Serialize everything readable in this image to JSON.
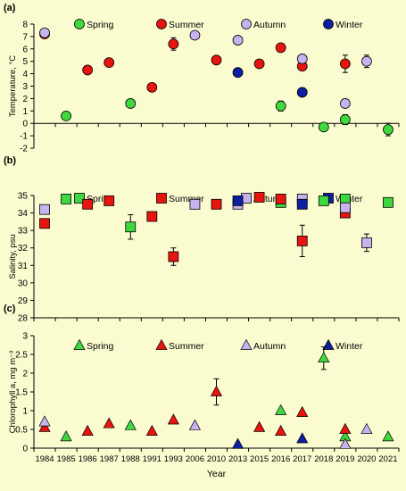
{
  "figure": {
    "background": "#fbfbd0"
  },
  "colors": {
    "Spring": "#3fd83f",
    "Summer": "#e8140e",
    "Autumn": "#c7b3f0",
    "Winter": "#0d1fa0"
  },
  "chart_data": [
    {
      "panel_label": "(a)",
      "type": "scatter",
      "marker": "circle",
      "ylabel": "Temperature, °C",
      "ylim": [
        -2,
        8
      ],
      "yticks": [
        -2,
        -1,
        0,
        1,
        2,
        3,
        4,
        5,
        6,
        7,
        8
      ],
      "legend": [
        "Spring",
        "Summer",
        "Autumn",
        "Winter"
      ],
      "series": [
        {
          "name": "Spring",
          "points": [
            {
              "year": "1985",
              "y": 0.6
            },
            {
              "year": "1988",
              "y": 1.6
            },
            {
              "year": "2016",
              "y": 1.4,
              "err": 0.4
            },
            {
              "year": "2018",
              "y": -0.3
            },
            {
              "year": "2019",
              "y": 0.3,
              "err": 0.4
            },
            {
              "year": "2021",
              "y": -0.5,
              "err": 0.5
            }
          ]
        },
        {
          "name": "Summer",
          "points": [
            {
              "year": "1984",
              "y": 7.2
            },
            {
              "year": "1986",
              "y": 4.3
            },
            {
              "year": "1987",
              "y": 4.9
            },
            {
              "year": "1991",
              "y": 2.9
            },
            {
              "year": "1993",
              "y": 6.4,
              "err": 0.5
            },
            {
              "year": "2010",
              "y": 5.1
            },
            {
              "year": "2015",
              "y": 4.8
            },
            {
              "year": "2016",
              "y": 6.1
            },
            {
              "year": "2017",
              "y": 4.6
            },
            {
              "year": "2019",
              "y": 4.8,
              "err": 0.7
            }
          ]
        },
        {
          "name": "Autumn",
          "points": [
            {
              "year": "1984",
              "y": 7.3
            },
            {
              "year": "2006",
              "y": 7.1
            },
            {
              "year": "2013",
              "y": 6.7
            },
            {
              "year": "2017",
              "y": 5.2
            },
            {
              "year": "2019",
              "y": 1.6
            },
            {
              "year": "2020",
              "y": 5.0,
              "err": 0.5
            }
          ]
        },
        {
          "name": "Winter",
          "points": [
            {
              "year": "2013",
              "y": 4.1
            },
            {
              "year": "2017",
              "y": 2.5
            }
          ]
        }
      ]
    },
    {
      "panel_label": "(b)",
      "type": "scatter",
      "marker": "square",
      "ylabel": "Salinity, psu",
      "ylim": [
        28,
        35
      ],
      "yticks": [
        28,
        29,
        30,
        31,
        32,
        33,
        34,
        35
      ],
      "legend": [
        "Spring",
        "Summer",
        "Autumn",
        "Winter"
      ],
      "series": [
        {
          "name": "Spring",
          "points": [
            {
              "year": "1985",
              "y": 34.8
            },
            {
              "year": "1988",
              "y": 33.2,
              "err": 0.7
            },
            {
              "year": "2016",
              "y": 34.6
            },
            {
              "year": "2018",
              "y": 34.7
            },
            {
              "year": "2019",
              "y": 34.8
            },
            {
              "year": "2021",
              "y": 34.6
            }
          ]
        },
        {
          "name": "Summer",
          "points": [
            {
              "year": "1984",
              "y": 33.4
            },
            {
              "year": "1986",
              "y": 34.5
            },
            {
              "year": "1987",
              "y": 34.7
            },
            {
              "year": "1991",
              "y": 33.8
            },
            {
              "year": "1993",
              "y": 31.5,
              "err": 0.5
            },
            {
              "year": "2010",
              "y": 34.5
            },
            {
              "year": "2015",
              "y": 34.9
            },
            {
              "year": "2016",
              "y": 34.8
            },
            {
              "year": "2017",
              "y": 32.4,
              "err": 0.9
            },
            {
              "year": "2019",
              "y": 34.0
            }
          ]
        },
        {
          "name": "Autumn",
          "points": [
            {
              "year": "1984",
              "y": 34.2
            },
            {
              "year": "2006",
              "y": 34.5
            },
            {
              "year": "2013",
              "y": 34.5
            },
            {
              "year": "2017",
              "y": 34.8
            },
            {
              "year": "2019",
              "y": 34.3
            },
            {
              "year": "2020",
              "y": 32.3,
              "err": 0.5
            }
          ]
        },
        {
          "name": "Winter",
          "points": [
            {
              "year": "2013",
              "y": 34.7
            },
            {
              "year": "2017",
              "y": 34.5
            }
          ]
        }
      ]
    },
    {
      "panel_label": "(c)",
      "type": "scatter",
      "marker": "triangle",
      "ylabel": "Chlorophyll a, mg m⁻³",
      "xlabel": "Year",
      "ylim": [
        0,
        3
      ],
      "yticks": [
        0,
        0.5,
        1,
        1.5,
        2,
        2.5,
        3
      ],
      "ytick_labels": [
        "0",
        "0.5",
        "1",
        "1.5",
        "2",
        "2.5",
        "3"
      ],
      "legend": [
        "Spring",
        "Summer",
        "Autumn",
        "Winter"
      ],
      "years": [
        "1984",
        "1985",
        "1986",
        "1987",
        "1988",
        "1991",
        "1993",
        "2006",
        "2010",
        "2013",
        "2015",
        "2016",
        "2017",
        "2018",
        "2019",
        "2020",
        "2021"
      ],
      "series": [
        {
          "name": "Spring",
          "points": [
            {
              "year": "1985",
              "y": 0.3
            },
            {
              "year": "1988",
              "y": 0.6
            },
            {
              "year": "2016",
              "y": 1.0
            },
            {
              "year": "2018",
              "y": 2.4,
              "err": 0.3
            },
            {
              "year": "2019",
              "y": 0.3
            },
            {
              "year": "2021",
              "y": 0.3
            }
          ]
        },
        {
          "name": "Summer",
          "points": [
            {
              "year": "1984",
              "y": 0.55
            },
            {
              "year": "1986",
              "y": 0.45
            },
            {
              "year": "1987",
              "y": 0.65
            },
            {
              "year": "1991",
              "y": 0.45
            },
            {
              "year": "1993",
              "y": 0.75
            },
            {
              "year": "2010",
              "y": 1.5,
              "err": 0.35
            },
            {
              "year": "2015",
              "y": 0.55
            },
            {
              "year": "2016",
              "y": 0.45
            },
            {
              "year": "2017",
              "y": 0.95
            },
            {
              "year": "2019",
              "y": 0.5
            }
          ]
        },
        {
          "name": "Autumn",
          "points": [
            {
              "year": "1984",
              "y": 0.7
            },
            {
              "year": "2006",
              "y": 0.6
            },
            {
              "year": "2019",
              "y": 0.1
            },
            {
              "year": "2020",
              "y": 0.5
            }
          ]
        },
        {
          "name": "Winter",
          "points": [
            {
              "year": "2013",
              "y": 0.1
            },
            {
              "year": "2017",
              "y": 0.25
            }
          ]
        }
      ]
    }
  ]
}
